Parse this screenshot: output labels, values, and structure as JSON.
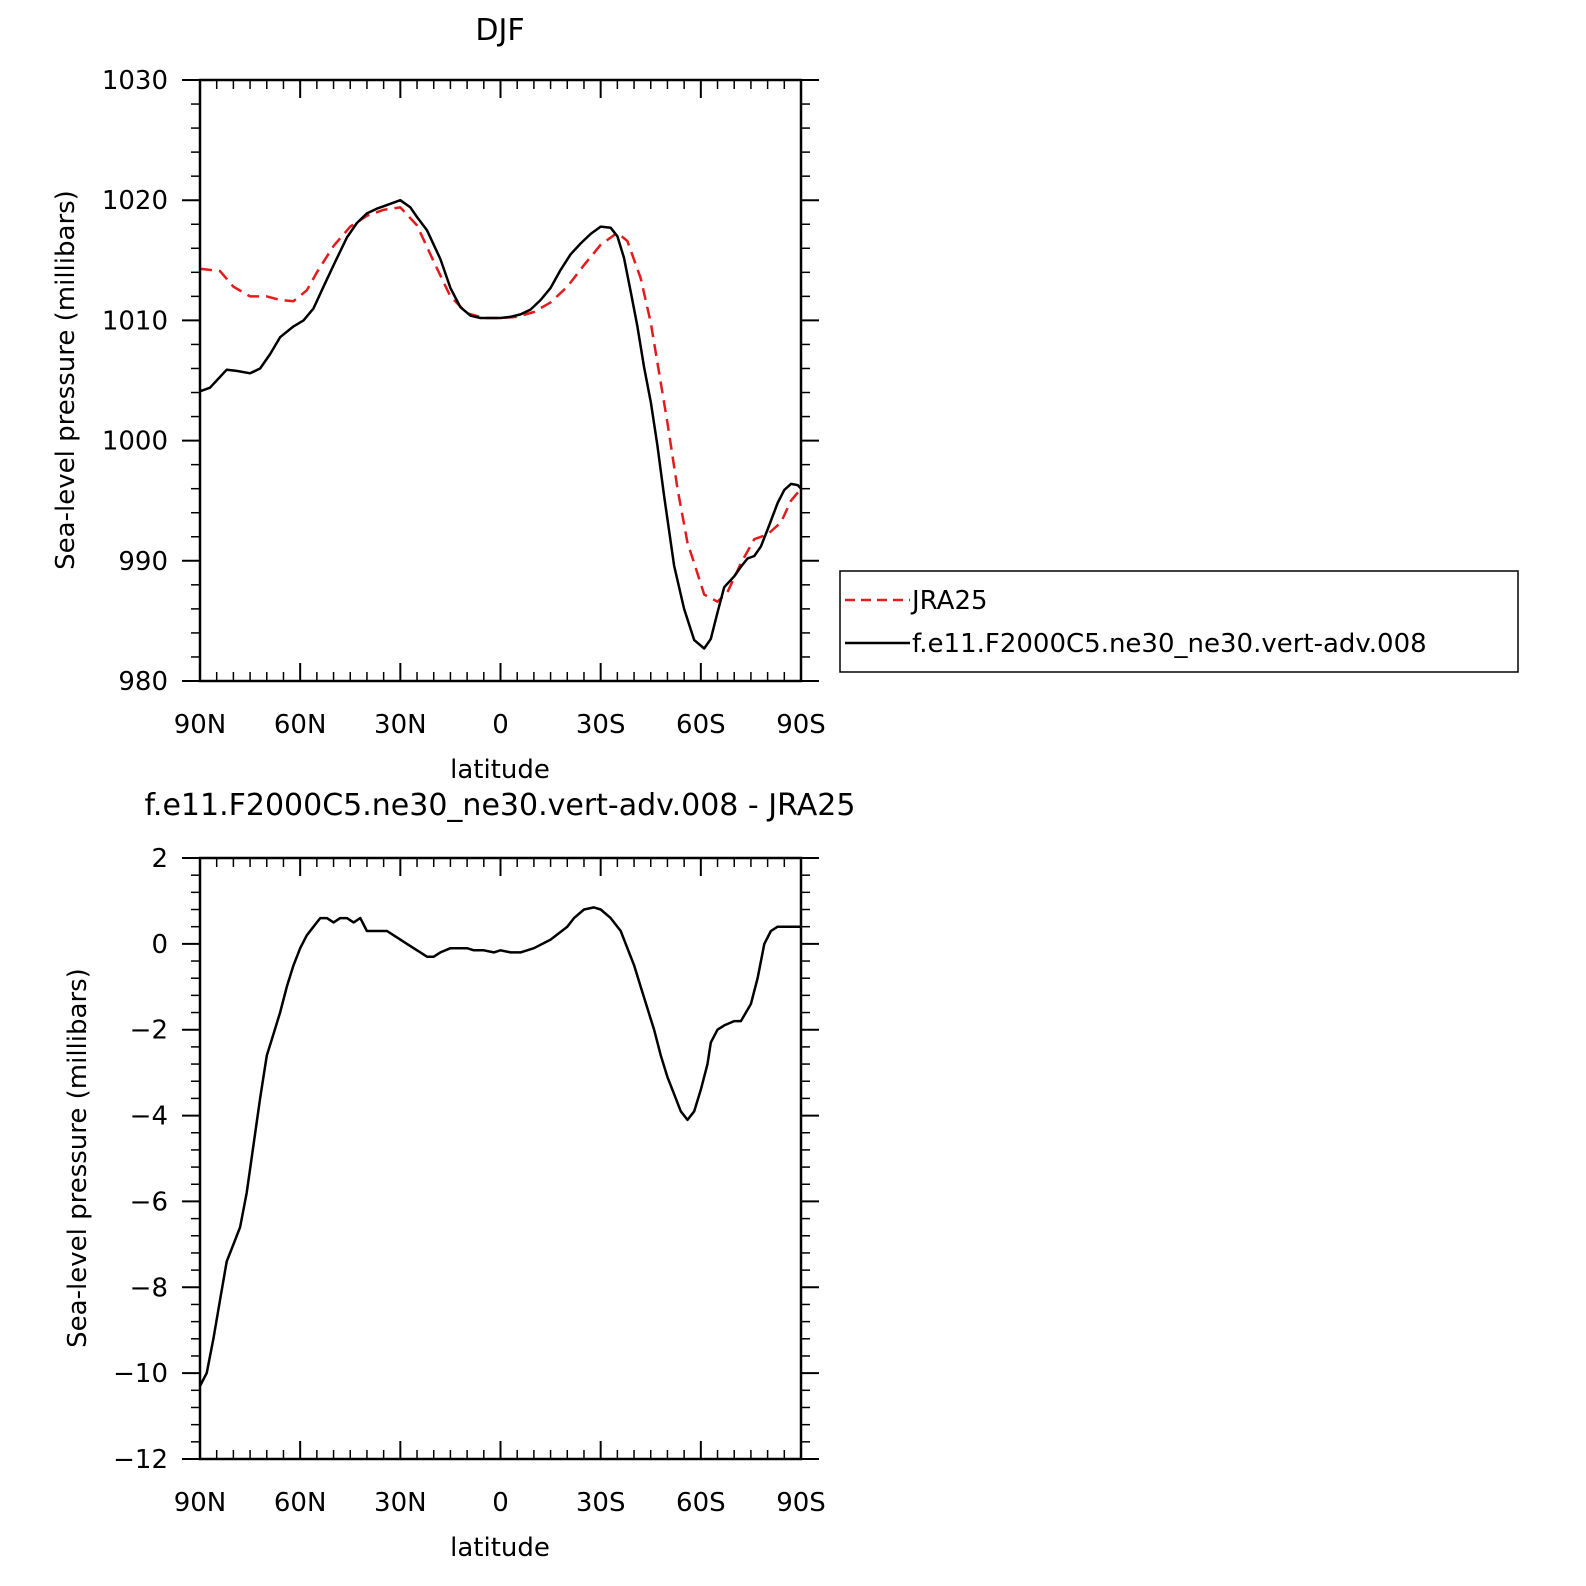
{
  "chart_data": [
    {
      "type": "line",
      "title": "DJF",
      "xlabel": "latitude",
      "ylabel": "Sea-level pressure (millibars)",
      "xlim": [
        90,
        -90
      ],
      "ylim": [
        980,
        1030
      ],
      "x_ticks": [
        90,
        60,
        30,
        0,
        -30,
        -60,
        -90
      ],
      "x_tick_labels": [
        "90N",
        "60N",
        "30N",
        "0",
        "30S",
        "60S",
        "90S"
      ],
      "y_ticks": [
        980,
        990,
        1000,
        1010,
        1020,
        1030
      ],
      "y_tick_labels": [
        "980",
        "990",
        "1000",
        "1010",
        "1020",
        "1030"
      ],
      "grid": false,
      "legend_position": "right",
      "series": [
        {
          "name": "JRA25",
          "color": "#e41a1c",
          "style": "dashed",
          "x": [
            90,
            84,
            80,
            75,
            70,
            66,
            62,
            58,
            55,
            50,
            45,
            40,
            35,
            30,
            25,
            20,
            15,
            10,
            5,
            0,
            -5,
            -10,
            -15,
            -20,
            -25,
            -30,
            -35,
            -38,
            -42,
            -45,
            -50,
            -53,
            -56,
            -58,
            -61,
            -65,
            -68,
            -72,
            -76,
            -80,
            -84,
            -87,
            -90
          ],
          "y": [
            1014.3,
            1014.1,
            1012.8,
            1012.0,
            1012.0,
            1011.7,
            1011.6,
            1012.5,
            1014.0,
            1016.2,
            1017.8,
            1018.7,
            1019.2,
            1019.4,
            1017.9,
            1014.9,
            1012.0,
            1010.6,
            1010.2,
            1010.2,
            1010.3,
            1010.7,
            1011.5,
            1012.8,
            1014.6,
            1016.3,
            1017.3,
            1016.6,
            1013.5,
            1009.8,
            1001.5,
            996.0,
            991.5,
            989.8,
            987.2,
            986.6,
            987.4,
            989.8,
            991.8,
            992.2,
            993.2,
            995.0,
            996.0
          ]
        },
        {
          "name": "f.e11.F2000C5.ne30_ne30.vert-adv.008",
          "color": "#000000",
          "style": "solid",
          "x": [
            90,
            87,
            82,
            79,
            75,
            72,
            69,
            66,
            62,
            59,
            56,
            53,
            50,
            46,
            43,
            40,
            37,
            33,
            30,
            27,
            25,
            22,
            18,
            15,
            12,
            9,
            6,
            3,
            0,
            -3,
            -6,
            -9,
            -12,
            -15,
            -18,
            -21,
            -24,
            -27,
            -30,
            -33,
            -35,
            -37,
            -39,
            -41,
            -43,
            -45,
            -47,
            -49,
            -52,
            -55,
            -58,
            -61,
            -63,
            -65,
            -67,
            -70,
            -72,
            -74,
            -76,
            -78,
            -80,
            -83,
            -85,
            -87,
            -89,
            -90
          ],
          "y": [
            1004.1,
            1004.4,
            1005.9,
            1005.8,
            1005.6,
            1006.0,
            1007.2,
            1008.6,
            1009.5,
            1010.0,
            1011.0,
            1012.8,
            1014.6,
            1016.9,
            1018.1,
            1018.9,
            1019.3,
            1019.7,
            1020.0,
            1019.4,
            1018.6,
            1017.5,
            1015.1,
            1012.7,
            1011.1,
            1010.4,
            1010.2,
            1010.2,
            1010.2,
            1010.3,
            1010.5,
            1010.9,
            1011.7,
            1012.7,
            1014.2,
            1015.5,
            1016.4,
            1017.2,
            1017.8,
            1017.7,
            1017.0,
            1015.2,
            1012.4,
            1009.5,
            1006.1,
            1003.2,
            999.6,
            995.4,
            989.6,
            986.0,
            983.4,
            982.7,
            983.5,
            985.7,
            987.8,
            988.7,
            989.5,
            990.2,
            990.4,
            991.2,
            992.6,
            994.8,
            995.9,
            996.4,
            996.3,
            996.0
          ]
        }
      ]
    },
    {
      "type": "line",
      "title": "f.e11.F2000C5.ne30_ne30.vert-adv.008 - JRA25",
      "xlabel": "latitude",
      "ylabel": "Sea-level pressure (millibars)",
      "xlim": [
        90,
        -90
      ],
      "ylim": [
        -12,
        2
      ],
      "x_ticks": [
        90,
        60,
        30,
        0,
        -30,
        -60,
        -90
      ],
      "x_tick_labels": [
        "90N",
        "60N",
        "30N",
        "0",
        "30S",
        "60S",
        "90S"
      ],
      "y_ticks": [
        -12,
        -10,
        -8,
        -6,
        -4,
        -2,
        0,
        2
      ],
      "y_tick_labels": [
        "−12",
        "−10",
        "−8",
        "−6",
        "−4",
        "−2",
        "0",
        "2"
      ],
      "grid": false,
      "series": [
        {
          "color": "#000000",
          "style": "solid",
          "x": [
            90,
            88,
            86,
            84,
            82,
            80,
            78,
            76,
            74,
            72,
            70,
            68,
            66,
            64,
            62,
            60,
            58,
            56,
            54,
            52,
            50,
            48,
            46,
            44,
            42,
            40,
            38,
            36,
            34,
            32,
            30,
            28,
            26,
            24,
            22,
            20,
            18,
            15,
            12,
            10,
            8,
            5,
            2,
            0,
            -3,
            -6,
            -10,
            -15,
            -20,
            -22,
            -25,
            -28,
            -30,
            -33,
            -36,
            -38,
            -40,
            -42,
            -44,
            -46,
            -48,
            -50,
            -52,
            -54,
            -56,
            -58,
            -60,
            -62,
            -63,
            -65,
            -67,
            -70,
            -72,
            -75,
            -77,
            -79,
            -81,
            -83,
            -85,
            -87,
            -89,
            -90
          ],
          "y": [
            -10.3,
            -10.0,
            -9.2,
            -8.3,
            -7.4,
            -7.0,
            -6.6,
            -5.8,
            -4.7,
            -3.6,
            -2.6,
            -2.1,
            -1.6,
            -1.0,
            -0.5,
            -0.1,
            0.2,
            0.4,
            0.6,
            0.6,
            0.5,
            0.6,
            0.6,
            0.5,
            0.6,
            0.3,
            0.3,
            0.3,
            0.3,
            0.2,
            0.1,
            0.0,
            -0.1,
            -0.2,
            -0.3,
            -0.3,
            -0.2,
            -0.1,
            -0.1,
            -0.1,
            -0.15,
            -0.15,
            -0.2,
            -0.15,
            -0.2,
            -0.2,
            -0.1,
            0.1,
            0.4,
            0.6,
            0.8,
            0.85,
            0.8,
            0.6,
            0.3,
            -0.1,
            -0.5,
            -1.0,
            -1.5,
            -2.0,
            -2.6,
            -3.1,
            -3.5,
            -3.9,
            -4.1,
            -3.9,
            -3.4,
            -2.8,
            -2.3,
            -2.0,
            -1.9,
            -1.8,
            -1.8,
            -1.4,
            -0.8,
            0.0,
            0.3,
            0.4,
            0.4,
            0.4,
            0.4,
            0.4
          ]
        }
      ]
    }
  ]
}
